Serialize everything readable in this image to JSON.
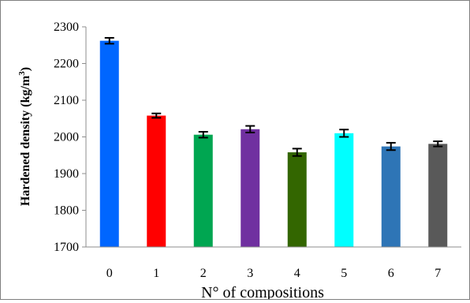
{
  "chart_data": {
    "type": "bar",
    "xlabel": "N° of compositions",
    "ylabel": "Hardened density  (kg/m",
    "ylabel_sup": "3",
    "ylabel_close": ")",
    "ylim": [
      1700,
      2300
    ],
    "yticks": [
      1700,
      1800,
      1900,
      2000,
      2100,
      2200,
      2300
    ],
    "grid": false,
    "legend": "none",
    "categories": [
      "0",
      "1",
      "2",
      "3",
      "4",
      "5",
      "6",
      "7"
    ],
    "values": [
      2262,
      2058,
      2006,
      2021,
      1958,
      2010,
      1974,
      1981
    ],
    "errors": [
      8,
      6,
      8,
      9,
      10,
      10,
      10,
      7
    ],
    "colors": [
      "#0066ff",
      "#ff0000",
      "#00a651",
      "#7030a0",
      "#336600",
      "#00ffff",
      "#2e75b6",
      "#595959"
    ]
  }
}
